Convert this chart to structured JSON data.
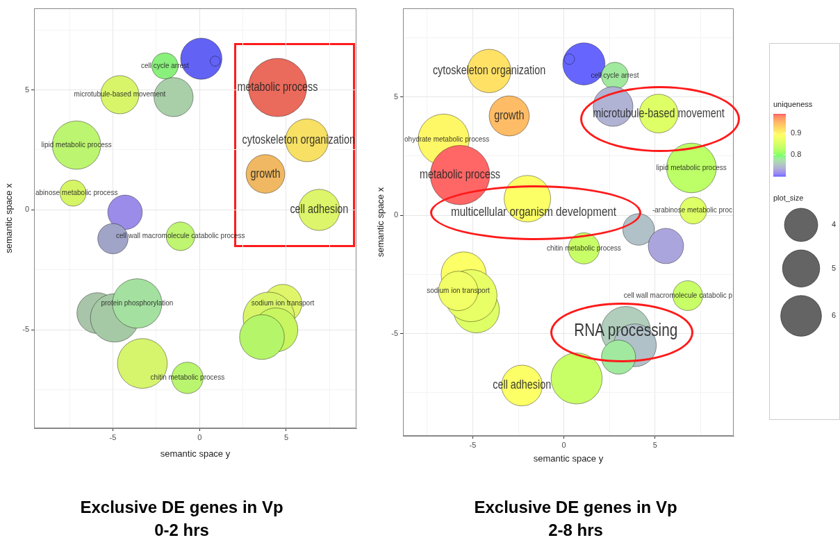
{
  "chart_data": [
    {
      "type": "bubble",
      "title": "Exclusive DE genes in Vp 0-2 hrs",
      "xlabel": "semantic space y",
      "ylabel": "semantic space x",
      "xlim": [
        -9.55,
        9.05
      ],
      "ylim": [
        -9.1,
        8.4
      ],
      "xticks": [
        {
          "value": -7.5,
          "label": null
        },
        -5,
        {
          "value": -2.5,
          "label": null
        },
        0,
        {
          "value": 2.5,
          "label": null
        },
        5,
        {
          "value": 7.5,
          "label": null
        }
      ],
      "yticks": [
        {
          "value": -7.5,
          "label": null
        },
        -5,
        {
          "value": -2.5,
          "label": null
        },
        0,
        {
          "value": 2.5,
          "label": null
        },
        5,
        {
          "value": 7.5,
          "label": null
        }
      ],
      "grid": true,
      "series": [
        {
          "x": [
            -2.0,
            0.1,
            0.9,
            -4.6,
            -1.5,
            4.5,
            6.2,
            3.8,
            6.9,
            -7.1,
            -7.3,
            -4.3,
            -5.0,
            -1.1,
            -5.9,
            -4.9,
            -3.6,
            -3.3,
            -0.7,
            4.8,
            4.0,
            4.4,
            3.6
          ],
          "values": [
            6.0,
            6.3,
            6.2,
            4.8,
            4.7,
            5.1,
            2.9,
            1.5,
            0.0,
            2.7,
            0.7,
            -0.1,
            -1.2,
            -1.1,
            -4.3,
            -4.5,
            -3.9,
            -6.4,
            -7.0,
            -3.9,
            -4.5,
            -5.0,
            -5.3
          ],
          "sizes": [
            0.2,
            0.5,
            0.03,
            0.43,
            0.45,
            1,
            0.54,
            0.44,
            0.5,
            0.69,
            0.2,
            0.35,
            0.27,
            0.24,
            0.49,
            0.69,
            0.72,
            0.73,
            0.29,
            0.43,
            0.78,
            0.57,
            0.59
          ],
          "colors": [
            "#8af07c",
            "#6262f5",
            "#6262f5",
            "#d8f56a",
            "#a9cfa9",
            "#ea6a5c",
            "#f7e063",
            "#f0b862",
            "#dcf56a",
            "#bcf570",
            "#d6f565",
            "#9a8ce8",
            "#a0a5c8",
            "#bff570",
            "#a9c5a9",
            "#a5c9a5",
            "#a4e0a0",
            "#d6f56c",
            "#b9f56e",
            "#e0f56a",
            "#d8f56a",
            "#c8f560",
            "#b5f56a"
          ]
        }
      ],
      "annotations": [
        {
          "text": "metabolic process",
          "x": 4.5,
          "y": 5.1
        },
        {
          "text": "cytoskeleton organization",
          "x": 6.2,
          "y": 2.9
        },
        {
          "text": "growth",
          "x": 3.8,
          "y": 1.5
        },
        {
          "text": "cell adhesion",
          "x": 6.9,
          "y": 0.0
        },
        {
          "text": "cell cycle arrest",
          "x": -2.0,
          "y": 6.0
        },
        {
          "text": "microtubule-based movement",
          "x": -4.6,
          "y": 4.8
        },
        {
          "text": "lipid metabolic process",
          "x": -7.1,
          "y": 2.7
        },
        {
          "text": "abinose metabolic process",
          "x": -7.3,
          "y": 0.7
        },
        {
          "text": "cell wall macromolecule catabolic process",
          "x": -1.1,
          "y": -1.1
        },
        {
          "text": "protein phosphorylation",
          "x": -3.6,
          "y": -3.9
        },
        {
          "text": "sodium ion transport",
          "x": 4.8,
          "y": -3.9
        },
        {
          "text": "chitin metabolic process",
          "x": -0.7,
          "y": -7.0
        }
      ]
    },
    {
      "type": "bubble",
      "title": "Exclusive DE genes in Vp 2-8 hrs",
      "xlabel": "semantic space y",
      "ylabel": "semantic space x",
      "xlim": [
        -8.83,
        9.32
      ],
      "ylim": [
        -9.33,
        8.75
      ],
      "xticks": [
        {
          "value": -7.5,
          "label": null
        },
        -5,
        {
          "value": -2.5,
          "label": null
        },
        0,
        {
          "value": 2.5,
          "label": null
        },
        5,
        {
          "value": 7.5,
          "label": null
        }
      ],
      "yticks": [
        {
          "value": -7.5,
          "label": null
        },
        -5,
        {
          "value": -2.5,
          "label": null
        },
        0,
        {
          "value": 2.5,
          "label": null
        },
        5,
        {
          "value": 7.5,
          "label": null
        }
      ],
      "grid": true,
      "clim": [
        0.7,
        0.99
      ],
      "clabel": "uniqueness",
      "cticks": [
        0.8,
        0.9
      ],
      "legend_title": "plot_size",
      "size_legend": [
        4,
        5,
        6
      ],
      "series": [
        {
          "x": [
            -4.1,
            -3.0,
            -6.6,
            -5.7,
            -2.0,
            1.1,
            0.3,
            2.8,
            2.7,
            5.2,
            7.0,
            7.1,
            4.1,
            5.6,
            1.1,
            -5.5,
            -4.8,
            -5.1,
            -5.8,
            6.8,
            3.4,
            3.9,
            3.0,
            0.7,
            -2.3
          ],
          "values": [
            6.1,
            4.2,
            3.2,
            1.7,
            0.7,
            6.4,
            6.6,
            5.9,
            4.6,
            4.3,
            2.0,
            0.2,
            -0.6,
            -1.3,
            -1.4,
            -2.5,
            -4.0,
            -3.4,
            -3.2,
            -3.4,
            -4.9,
            -5.5,
            -6.0,
            -6.9,
            -7.2
          ],
          "sizes": [
            6.8,
            5.8,
            9.4,
            12.7,
            7.8,
            6.4,
            0.4,
            2.6,
            5.7,
            5.4,
            8.9,
            2.6,
            3.6,
            4.5,
            3.5,
            7.3,
            7.6,
            9.8,
            5.6,
            3.2,
            8.8,
            6.6,
            4.2,
            9.4,
            6.0
          ],
          "cvalues": [
            0.92,
            0.95,
            0.9,
            0.99,
            0.89,
            0.7,
            0.7,
            0.78,
            0.74,
            0.86,
            0.83,
            0.86,
            0.75,
            0.73,
            0.84,
            0.89,
            0.86,
            0.87,
            0.88,
            0.84,
            0.76,
            0.75,
            0.78,
            0.84,
            0.89
          ]
        }
      ],
      "annotations": [
        {
          "text": "cytoskeleton organization",
          "x": -4.1,
          "y": 6.1
        },
        {
          "text": "growth",
          "x": -3.0,
          "y": 4.2
        },
        {
          "text": "metabolic process",
          "x": -5.7,
          "y": 1.7
        },
        "multicellular organism development",
        {
          "text": "microtubule-based movement",
          "x": 5.2,
          "y": 4.3
        },
        {
          "text": "RNA processing",
          "x": 3.4,
          "y": -4.9
        },
        {
          "text": "cell adhesion",
          "x": -2.3,
          "y": -7.2
        },
        {
          "text": "ohydrate metabolic process",
          "x": -6.6,
          "y": 3.2
        },
        {
          "text": "cell cycle arrest",
          "x": 2.8,
          "y": 5.9
        },
        {
          "text": "lipid metabolic process",
          "x": 7.0,
          "y": 2.0
        },
        {
          "text": "-arabinose metabolic proc",
          "x": 7.1,
          "y": 0.2
        },
        {
          "text": "chitin metabolic process",
          "x": 1.1,
          "y": -1.4
        },
        {
          "text": "sodium ion transport",
          "x": -5.8,
          "y": -3.2
        },
        {
          "text": "cell wall macromolecule catabolic p",
          "x": 6.8,
          "y": -3.4
        }
      ]
    }
  ]
}
